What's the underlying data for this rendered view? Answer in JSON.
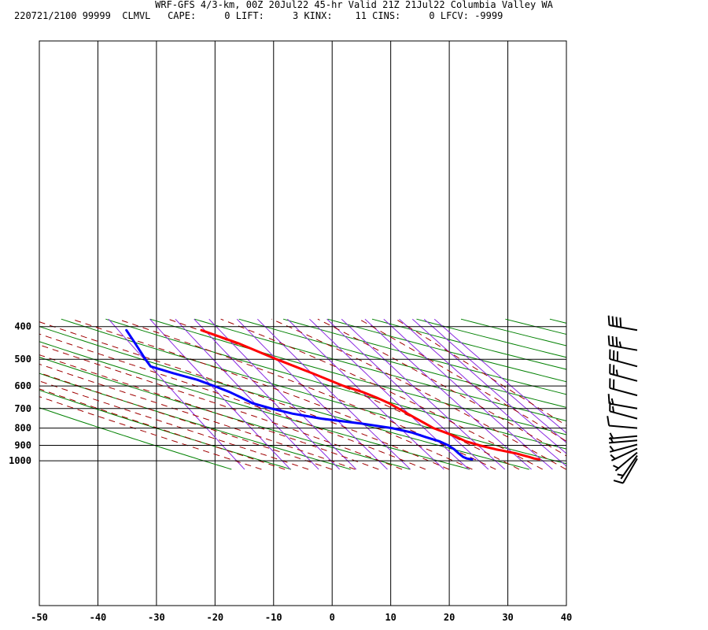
{
  "header": {
    "title": "WRF-GFS 4/3-km, 00Z 20Jul22 45-hr Valid 21Z 21Jul22 Columbia Valley WA",
    "indices": "220721/2100 99999  CLMVL   CAPE:     0 LIFT:     3 KINX:    11 CINS:     0 LFCV: -9999"
  },
  "colors": {
    "isotherm": "#000000",
    "dry_adiabat": "#008000",
    "moist_adiabat": "#a00000",
    "mixing_ratio": "#8a2be2",
    "temperature": "#ff0000",
    "dewpoint": "#0000ff",
    "wind_barb": "#000000"
  },
  "chart_data": {
    "type": "line",
    "chart_kind": "Skew-T log-P sounding",
    "x_axis": {
      "range": [
        -50,
        40
      ],
      "ticks": [
        -50,
        -40,
        -30,
        -20,
        -10,
        0,
        10,
        20,
        30,
        40
      ]
    },
    "y_axis": {
      "scale": "log",
      "range": [
        400,
        1040
      ],
      "ticks": [
        400,
        500,
        600,
        700,
        800,
        900,
        1000
      ]
    },
    "grid": true,
    "series": [
      {
        "points": [
          [
            410,
            -22.6
          ],
          [
            450,
            -17.2
          ],
          [
            500,
            -12.2
          ],
          [
            550,
            -7.3
          ],
          [
            600,
            -3.0
          ],
          [
            625,
            -0.3
          ],
          [
            650,
            1.7
          ],
          [
            675,
            3.3
          ],
          [
            700,
            4.5
          ],
          [
            750,
            6.7
          ],
          [
            800,
            8.8
          ],
          [
            825,
            10.5
          ],
          [
            850,
            12.0
          ],
          [
            875,
            13.2
          ],
          [
            900,
            15.2
          ],
          [
            925,
            17.7
          ],
          [
            950,
            20.7
          ],
          [
            975,
            22.8
          ],
          [
            985,
            23.5
          ],
          [
            990,
            24.3
          ]
        ]
      },
      {
        "points": [
          [
            410,
            -35.4
          ],
          [
            450,
            -35.0
          ],
          [
            500,
            -34.6
          ],
          [
            525,
            -34.3
          ],
          [
            550,
            -31.0
          ],
          [
            575,
            -27.5
          ],
          [
            600,
            -25.1
          ],
          [
            625,
            -23.0
          ],
          [
            650,
            -21.4
          ],
          [
            675,
            -20.0
          ],
          [
            700,
            -17.2
          ],
          [
            725,
            -14.0
          ],
          [
            750,
            -9.5
          ],
          [
            775,
            -3.2
          ],
          [
            800,
            1.7
          ],
          [
            825,
            4.8
          ],
          [
            850,
            6.7
          ],
          [
            875,
            8.7
          ],
          [
            900,
            9.9
          ],
          [
            925,
            10.6
          ],
          [
            950,
            11.0
          ],
          [
            975,
            11.5
          ],
          [
            985,
            12.0
          ],
          [
            990,
            12.8
          ]
        ]
      }
    ],
    "winds": [
      {
        "p": 410,
        "dir": 280,
        "spd": 40
      },
      {
        "p": 470,
        "dir": 280,
        "spd": 35
      },
      {
        "p": 525,
        "dir": 285,
        "spd": 30
      },
      {
        "p": 580,
        "dir": 285,
        "spd": 25
      },
      {
        "p": 640,
        "dir": 285,
        "spd": 20
      },
      {
        "p": 700,
        "dir": 280,
        "spd": 15
      },
      {
        "p": 750,
        "dir": 285,
        "spd": 15
      },
      {
        "p": 800,
        "dir": 275,
        "spd": 10
      },
      {
        "p": 845,
        "dir": 265,
        "spd": 5
      },
      {
        "p": 870,
        "dir": 265,
        "spd": 5
      },
      {
        "p": 895,
        "dir": 255,
        "spd": 5
      },
      {
        "p": 920,
        "dir": 245,
        "spd": 5
      },
      {
        "p": 945,
        "dir": 230,
        "spd": 5
      },
      {
        "p": 965,
        "dir": 215,
        "spd": 5
      },
      {
        "p": 985,
        "dir": 210,
        "spd": 10
      }
    ]
  }
}
